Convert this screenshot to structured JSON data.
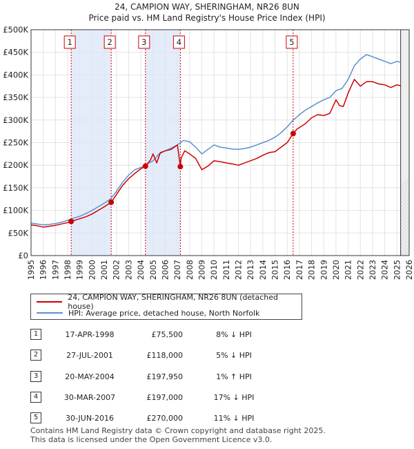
{
  "chart_data": {
    "type": "line",
    "title": "24, CAMPION WAY, SHERINGHAM, NR26 8UN",
    "subtitle": "Price paid vs. HM Land Registry's House Price Index (HPI)",
    "xlim": [
      1995,
      2026
    ],
    "ylim": [
      0,
      500000
    ],
    "y_ticks": [
      0,
      50000,
      100000,
      150000,
      200000,
      250000,
      300000,
      350000,
      400000,
      450000,
      500000
    ],
    "y_tick_labels": [
      "£0",
      "£50K",
      "£100K",
      "£150K",
      "£200K",
      "£250K",
      "£300K",
      "£350K",
      "£400K",
      "£450K",
      "£500K"
    ],
    "x_ticks": [
      1995,
      1996,
      1997,
      1998,
      1999,
      2000,
      2001,
      2002,
      2003,
      2004,
      2005,
      2006,
      2007,
      2008,
      2009,
      2010,
      2011,
      2012,
      2013,
      2014,
      2015,
      2016,
      2017,
      2018,
      2019,
      2020,
      2021,
      2022,
      2023,
      2024,
      2025,
      2026
    ],
    "x_tick_labels": [
      "1995",
      "1996",
      "1997",
      "1998",
      "1999",
      "2000",
      "2001",
      "2002",
      "2003",
      "2004",
      "2005",
      "2006",
      "2007",
      "2008",
      "2009",
      "2010",
      "2011",
      "2012",
      "2013",
      "2014",
      "2015",
      "2016",
      "2017",
      "2018",
      "2019",
      "2020",
      "2021",
      "2022",
      "2023",
      "2024",
      "2025",
      "2026"
    ],
    "series": [
      {
        "name": "24, CAMPION WAY, SHERINGHAM, NR26 8UN (detached house)",
        "color": "#cc0000",
        "x": [
          1995.0,
          1995.5,
          1996.0,
          1996.5,
          1997.0,
          1997.5,
          1998.0,
          1998.29,
          1998.8,
          1999.5,
          2000.0,
          2000.5,
          2001.0,
          2001.57,
          2002.0,
          2002.5,
          2003.0,
          2003.5,
          2004.0,
          2004.38,
          2004.8,
          2005.0,
          2005.3,
          2005.6,
          2006.0,
          2006.5,
          2007.0,
          2007.24,
          2007.3,
          2007.6,
          2008.0,
          2008.5,
          2009.0,
          2009.5,
          2010.0,
          2010.5,
          2011.0,
          2011.5,
          2012.0,
          2012.5,
          2013.0,
          2013.5,
          2014.0,
          2014.5,
          2015.0,
          2015.5,
          2016.0,
          2016.49,
          2016.8,
          2017.5,
          2018.0,
          2018.5,
          2019.0,
          2019.5,
          2020.0,
          2020.3,
          2020.6,
          2021.0,
          2021.5,
          2022.0,
          2022.5,
          2023.0,
          2023.5,
          2024.0,
          2024.5,
          2025.0,
          2025.3
        ],
        "values": [
          68000,
          66000,
          63000,
          65000,
          67000,
          70000,
          73000,
          75500,
          80000,
          86000,
          92000,
          100000,
          108000,
          118000,
          135000,
          155000,
          170000,
          182000,
          192000,
          197950,
          212000,
          225000,
          205000,
          228000,
          232000,
          235000,
          245000,
          197000,
          215000,
          232000,
          225000,
          215000,
          190000,
          198000,
          210000,
          208000,
          205000,
          203000,
          200000,
          205000,
          210000,
          215000,
          222000,
          228000,
          230000,
          240000,
          250000,
          270000,
          280000,
          292000,
          305000,
          312000,
          310000,
          315000,
          345000,
          332000,
          330000,
          360000,
          390000,
          375000,
          385000,
          385000,
          380000,
          378000,
          372000,
          378000,
          376000
        ]
      },
      {
        "name": "HPI: Average price, detached house, North Norfolk",
        "color": "#5b8fd0",
        "x": [
          1995.0,
          1995.5,
          1996.0,
          1996.5,
          1997.0,
          1997.5,
          1998.0,
          1998.5,
          1999.0,
          1999.5,
          2000.0,
          2000.5,
          2001.0,
          2001.5,
          2002.0,
          2002.5,
          2003.0,
          2003.5,
          2004.0,
          2004.5,
          2005.0,
          2005.5,
          2006.0,
          2006.5,
          2007.0,
          2007.5,
          2008.0,
          2008.5,
          2009.0,
          2009.5,
          2010.0,
          2010.5,
          2011.0,
          2011.5,
          2012.0,
          2012.5,
          2013.0,
          2013.5,
          2014.0,
          2014.5,
          2015.0,
          2015.5,
          2016.0,
          2016.5,
          2017.0,
          2017.5,
          2018.0,
          2018.5,
          2019.0,
          2019.5,
          2020.0,
          2020.5,
          2021.0,
          2021.5,
          2022.0,
          2022.5,
          2023.0,
          2023.5,
          2024.0,
          2024.5,
          2025.0,
          2025.3
        ],
        "values": [
          72000,
          70000,
          68000,
          69000,
          71000,
          74000,
          78000,
          83000,
          87000,
          93000,
          100000,
          108000,
          116000,
          125000,
          142000,
          162000,
          178000,
          190000,
          195000,
          202000,
          210000,
          225000,
          232000,
          238000,
          245000,
          255000,
          252000,
          240000,
          225000,
          235000,
          245000,
          240000,
          238000,
          236000,
          235000,
          237000,
          240000,
          245000,
          250000,
          255000,
          262000,
          272000,
          285000,
          300000,
          312000,
          322000,
          330000,
          338000,
          345000,
          350000,
          365000,
          370000,
          390000,
          420000,
          435000,
          445000,
          440000,
          435000,
          430000,
          425000,
          430000,
          428000
        ]
      }
    ],
    "sales": [
      {
        "label": "1",
        "x": 1998.29,
        "value": 75500
      },
      {
        "label": "2",
        "x": 2001.57,
        "value": 118000
      },
      {
        "label": "3",
        "x": 2004.38,
        "value": 197950
      },
      {
        "label": "4",
        "x": 2007.24,
        "value": 197000
      },
      {
        "label": "5",
        "x": 2016.49,
        "value": 270000
      }
    ],
    "shaded_spans": [
      [
        1998.29,
        2001.57
      ],
      [
        2004.38,
        2007.24
      ]
    ],
    "forecast_start": 2025.3
  },
  "legend": {
    "property_label": "24, CAMPION WAY, SHERINGHAM, NR26 8UN (detached house)",
    "hpi_label": "HPI: Average price, detached house, North Norfolk",
    "property_color": "#cc0000",
    "hpi_color": "#5b8fd0"
  },
  "transactions": [
    {
      "num": "1",
      "date": "17-APR-1998",
      "price": "£75,500",
      "hpi": "8% ↓ HPI"
    },
    {
      "num": "2",
      "date": "27-JUL-2001",
      "price": "£118,000",
      "hpi": "5% ↓ HPI"
    },
    {
      "num": "3",
      "date": "20-MAY-2004",
      "price": "£197,950",
      "hpi": "1% ↑ HPI"
    },
    {
      "num": "4",
      "date": "30-MAR-2007",
      "price": "£197,000",
      "hpi": "17% ↓ HPI"
    },
    {
      "num": "5",
      "date": "30-JUN-2016",
      "price": "£270,000",
      "hpi": "11% ↓ HPI"
    }
  ],
  "footer": {
    "line1": "Contains HM Land Registry data © Crown copyright and database right 2025.",
    "line2": "This data is licensed under the Open Government Licence v3.0."
  }
}
